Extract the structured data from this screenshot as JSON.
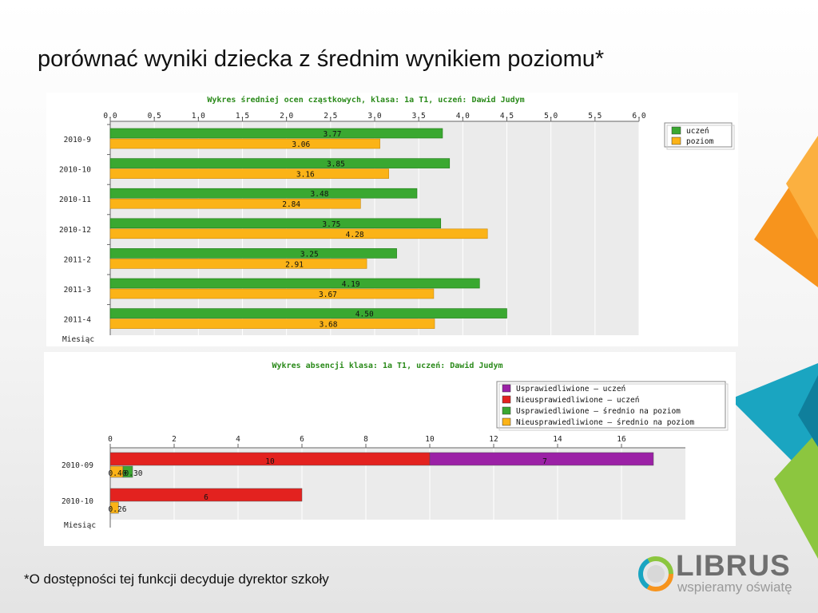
{
  "slide": {
    "title": "porównać wyniki dziecka z średnim wynikiem poziomu*",
    "footnote": "*O dostępności tej funkcji decyduje dyrektor szkoły"
  },
  "logo": {
    "name": "LIBRUS",
    "tagline": "wspieramy oświatę"
  },
  "chart_data": [
    {
      "type": "bar",
      "orientation": "horizontal",
      "title": "Wykres średniej ocen cząstkowych,  klasa: 1a T1, uczeń: Dawid Judym",
      "ylabel": "Miesiąc",
      "categories": [
        "2010-9",
        "2010-10",
        "2010-11",
        "2010-12",
        "2011-2",
        "2011-3",
        "2011-4"
      ],
      "series": [
        {
          "name": "uczeń",
          "color": "#3aa831",
          "values": [
            3.77,
            3.85,
            3.48,
            3.75,
            3.25,
            4.19,
            4.5
          ]
        },
        {
          "name": "poziom",
          "color": "#fbb317",
          "values": [
            3.06,
            3.16,
            2.84,
            4.28,
            2.91,
            3.67,
            3.68
          ]
        }
      ],
      "value_labels": [
        [
          "3.77",
          "3.85",
          "3.48",
          "3.75",
          "3.25",
          "4.19",
          "4.50"
        ],
        [
          "3.06",
          "3.16",
          "2.84",
          "4.28",
          "2.91",
          "3.67",
          "3.68"
        ]
      ],
      "xlim": [
        0,
        6.0
      ],
      "xticks": [
        "0.0",
        "0.5",
        "1.0",
        "1.5",
        "2.0",
        "2.5",
        "3.0",
        "3.5",
        "4.0",
        "4.5",
        "5.0",
        "5.5",
        "6.0"
      ],
      "grid": true,
      "legend": "top-right"
    },
    {
      "type": "bar",
      "orientation": "horizontal",
      "stacked": true,
      "title": "Wykres absencji  klasa: 1a T1, uczeń: Dawid Judym",
      "ylabel": "Miesiąc",
      "categories": [
        "2010-09",
        "2010-10"
      ],
      "series": [
        {
          "name": "Usprawiedliwione – uczeń",
          "color": "#9b21a6",
          "values": [
            7,
            0
          ]
        },
        {
          "name": "Nieusprawiedliwione – uczeń",
          "color": "#e3221f",
          "values": [
            10,
            6
          ]
        },
        {
          "name": "Usprawiedliwione – średnio na poziom",
          "color": "#3aa831",
          "values": [
            0.3,
            0
          ]
        },
        {
          "name": "Nieusprawiedliwione – średnio na poziom",
          "color": "#fbb317",
          "values": [
            0.4,
            0.26
          ]
        }
      ],
      "bar_labels": [
        {
          "row": 0,
          "series": 1,
          "text": "10"
        },
        {
          "row": 0,
          "series": 0,
          "text": "7"
        },
        {
          "row": 0,
          "series": 3,
          "text": "0.40"
        },
        {
          "row": 0,
          "series": 2,
          "text": "0.30"
        },
        {
          "row": 1,
          "series": 1,
          "text": "6"
        },
        {
          "row": 1,
          "series": 3,
          "text": "0.26"
        }
      ],
      "xlim": [
        0,
        18
      ],
      "xticks": [
        "0",
        "2",
        "4",
        "6",
        "8",
        "10",
        "12",
        "14",
        "16"
      ],
      "grid": true,
      "legend": "top-right"
    }
  ]
}
